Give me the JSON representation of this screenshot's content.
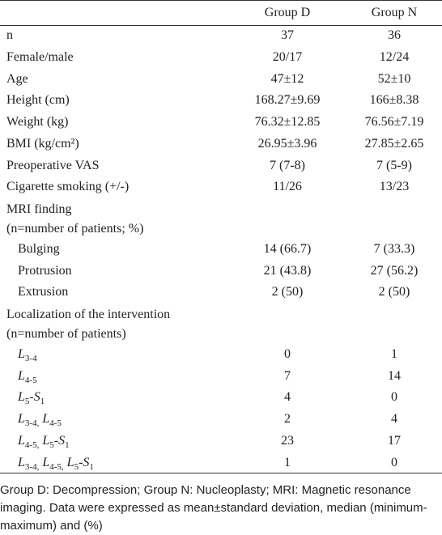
{
  "table": {
    "columns": [
      "Group D",
      "Group N"
    ],
    "rows": [
      {
        "label": "n",
        "values": [
          "37",
          "36"
        ]
      },
      {
        "label": "Female/male",
        "values": [
          "20/17",
          "12/24"
        ]
      },
      {
        "label": "Age",
        "values": [
          "47±12",
          "52±10"
        ]
      },
      {
        "label": "Height (cm)",
        "values": [
          "168.27±9.69",
          "166±8.38"
        ]
      },
      {
        "label": "Weight (kg)",
        "values": [
          "76.32±12.85",
          "76.56±7.19"
        ]
      },
      {
        "label": "BMI (kg/cm²)",
        "values": [
          "26.95±3.96",
          "27.85±2.65"
        ]
      },
      {
        "label": "Preoperative VAS",
        "values": [
          "7 (7-8)",
          "7 (5-9)"
        ]
      },
      {
        "label": "Cigarette smoking (+/-)",
        "values": [
          "11/26",
          "13/23"
        ]
      },
      {
        "label_lines": [
          "MRI finding",
          "(n=number of patients; %)"
        ]
      },
      {
        "label": "Bulging",
        "indent": true,
        "values": [
          "14 (66.7)",
          "7 (33.3)"
        ]
      },
      {
        "label": "Protrusion",
        "indent": true,
        "values": [
          "21 (43.8)",
          "27 (56.2)"
        ]
      },
      {
        "label": "Extrusion",
        "indent": true,
        "values": [
          "2 (50)",
          "2 (50)"
        ]
      },
      {
        "label_lines": [
          "Localization of the intervention",
          "(n=number of patients)"
        ]
      },
      {
        "label_parts": [
          {
            "text": "L",
            "sub": "3-4"
          }
        ],
        "indent": true,
        "values": [
          "0",
          "1"
        ]
      },
      {
        "label_parts": [
          {
            "text": "L",
            "sub": "4-5"
          }
        ],
        "indent": true,
        "values": [
          "7",
          "14"
        ]
      },
      {
        "label_parts": [
          {
            "text": "L",
            "sub": "5"
          },
          {
            "text": "-S",
            "sub": "1"
          }
        ],
        "indent": true,
        "values": [
          "4",
          "0"
        ]
      },
      {
        "label_parts": [
          {
            "text": "L",
            "sub": "3-4,"
          },
          {
            "text": " L",
            "sub": "4-5"
          }
        ],
        "indent": true,
        "values": [
          "2",
          "4"
        ]
      },
      {
        "label_parts": [
          {
            "text": "L",
            "sub": "4-5,"
          },
          {
            "text": " L",
            "sub": "5"
          },
          {
            "text": "-S",
            "sub": "1"
          }
        ],
        "indent": true,
        "values": [
          "23",
          "17"
        ]
      },
      {
        "label_parts": [
          {
            "text": "L",
            "sub": "3-4,"
          },
          {
            "text": " L",
            "sub": "4-5,"
          },
          {
            "text": " L",
            "sub": "5"
          },
          {
            "text": "-S",
            "sub": "1"
          }
        ],
        "indent": true,
        "values": [
          "1",
          "0"
        ]
      }
    ],
    "footnote": "Group D: Decompression; Group N: Nucleoplasty; MRI: Magnetic resonance imaging. Data were expressed as mean±standard deviation, median (minimum-maximum) and (%)"
  }
}
